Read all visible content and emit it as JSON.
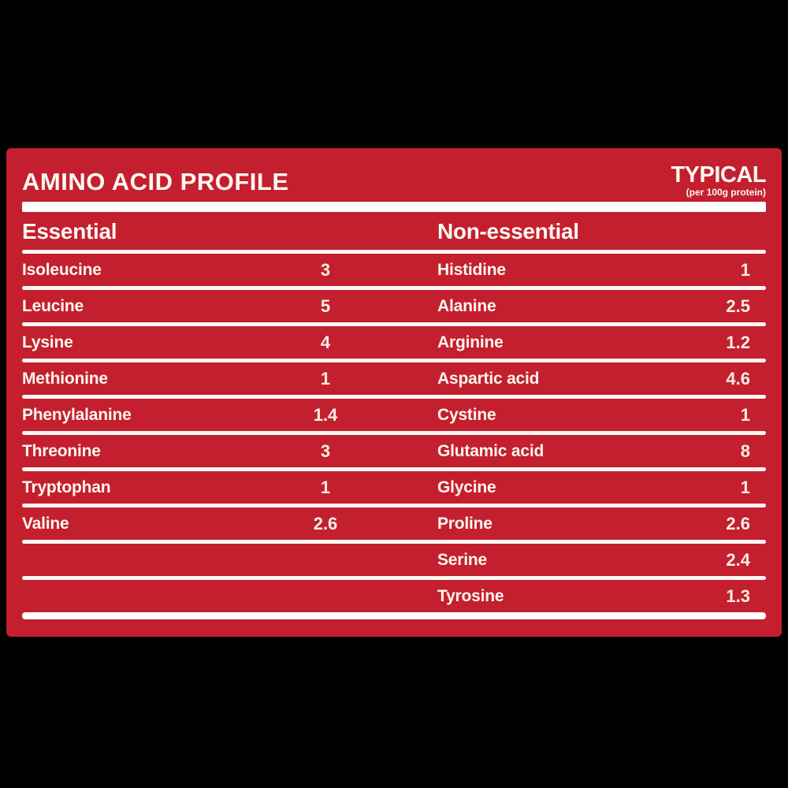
{
  "panel": {
    "title": "AMINO ACID PROFILE",
    "typical": {
      "label": "TYPICAL",
      "sub_label": "(per 100g protein)"
    },
    "columns": {
      "left_header": "Essential",
      "right_header": "Non-essential"
    },
    "rows": [
      {
        "l": "Isoleucine",
        "lv": "3",
        "r": "Histidine",
        "rv": "1"
      },
      {
        "l": "Leucine",
        "lv": "5",
        "r": "Alanine",
        "rv": "2.5"
      },
      {
        "l": "Lysine",
        "lv": "4",
        "r": "Arginine",
        "rv": "1.2"
      },
      {
        "l": "Methionine",
        "lv": "1",
        "r": "Aspartic acid",
        "rv": "4.6"
      },
      {
        "l": "Phenylalanine",
        "lv": "1.4",
        "r": "Cystine",
        "rv": "1"
      },
      {
        "l": "Threonine",
        "lv": "3",
        "r": "Glutamic acid",
        "rv": "8"
      },
      {
        "l": "Tryptophan",
        "lv": "1",
        "r": "Glycine",
        "rv": "1"
      },
      {
        "l": "Valine",
        "lv": "2.6",
        "r": "Proline",
        "rv": "2.6"
      },
      {
        "l": "",
        "lv": "",
        "r": "Serine",
        "rv": "2.4"
      },
      {
        "l": "",
        "lv": "",
        "r": "Tyrosine",
        "rv": "1.3"
      }
    ],
    "colors": {
      "background": "#c41f2e",
      "text": "#ffffff",
      "divider": "#ffffff",
      "letterbox": "#000000"
    }
  }
}
